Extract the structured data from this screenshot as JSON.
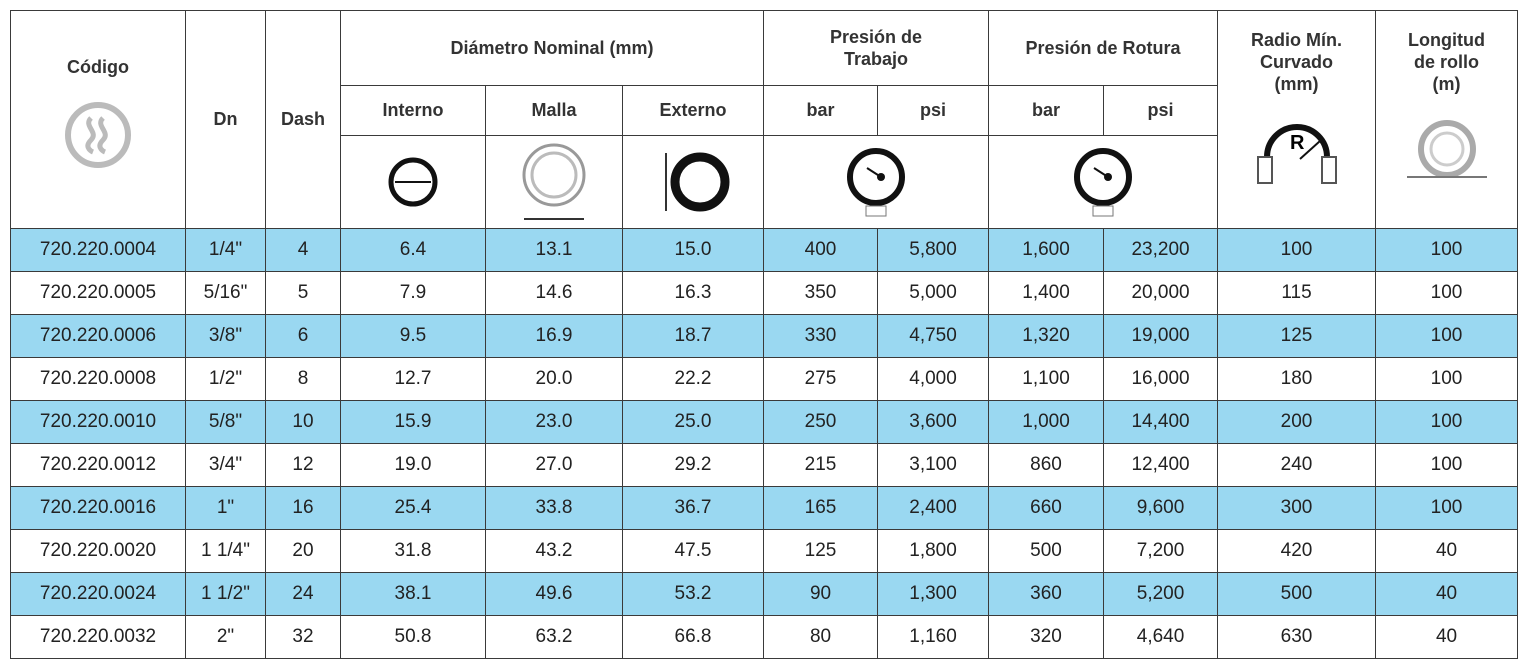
{
  "header": {
    "codigo": "Código",
    "dn": "Dn",
    "dash": "Dash",
    "diametro": "Diámetro Nominal (mm)",
    "interno": "Interno",
    "malla": "Malla",
    "externo": "Externo",
    "presion_trabajo": "Presión de Trabajo",
    "presion_rotura": "Presión de Rotura",
    "bar_t": "bar",
    "psi_t": "psi",
    "bar_r": "bar",
    "psi_r": "psi",
    "radio": "Radio Mín. Curvado (mm)",
    "radio_icon": "R",
    "longitud": "Longitud de rollo (m)"
  },
  "table": {
    "rows": [
      [
        "720.220.0004",
        "1/4\"",
        "4",
        "6.4",
        "13.1",
        "15.0",
        "400",
        "5,800",
        "1,600",
        "23,200",
        "100",
        "100"
      ],
      [
        "720.220.0005",
        "5/16\"",
        "5",
        "7.9",
        "14.6",
        "16.3",
        "350",
        "5,000",
        "1,400",
        "20,000",
        "115",
        "100"
      ],
      [
        "720.220.0006",
        "3/8\"",
        "6",
        "9.5",
        "16.9",
        "18.7",
        "330",
        "4,750",
        "1,320",
        "19,000",
        "125",
        "100"
      ],
      [
        "720.220.0008",
        "1/2\"",
        "8",
        "12.7",
        "20.0",
        "22.2",
        "275",
        "4,000",
        "1,100",
        "16,000",
        "180",
        "100"
      ],
      [
        "720.220.0010",
        "5/8\"",
        "10",
        "15.9",
        "23.0",
        "25.0",
        "250",
        "3,600",
        "1,000",
        "14,400",
        "200",
        "100"
      ],
      [
        "720.220.0012",
        "3/4\"",
        "12",
        "19.0",
        "27.0",
        "29.2",
        "215",
        "3,100",
        "860",
        "12,400",
        "240",
        "100"
      ],
      [
        "720.220.0016",
        "1\"",
        "16",
        "25.4",
        "33.8",
        "36.7",
        "165",
        "2,400",
        "660",
        "9,600",
        "300",
        "100"
      ],
      [
        "720.220.0020",
        "1 1/4\"",
        "20",
        "31.8",
        "43.2",
        "47.5",
        "125",
        "1,800",
        "500",
        "7,200",
        "420",
        "40"
      ],
      [
        "720.220.0024",
        "1 1/2\"",
        "24",
        "38.1",
        "49.6",
        "53.2",
        "90",
        "1,300",
        "360",
        "5,200",
        "500",
        "40"
      ],
      [
        "720.220.0032",
        "2\"",
        "32",
        "50.8",
        "63.2",
        "66.8",
        "80",
        "1,160",
        "320",
        "4,640",
        "630",
        "40"
      ]
    ]
  }
}
